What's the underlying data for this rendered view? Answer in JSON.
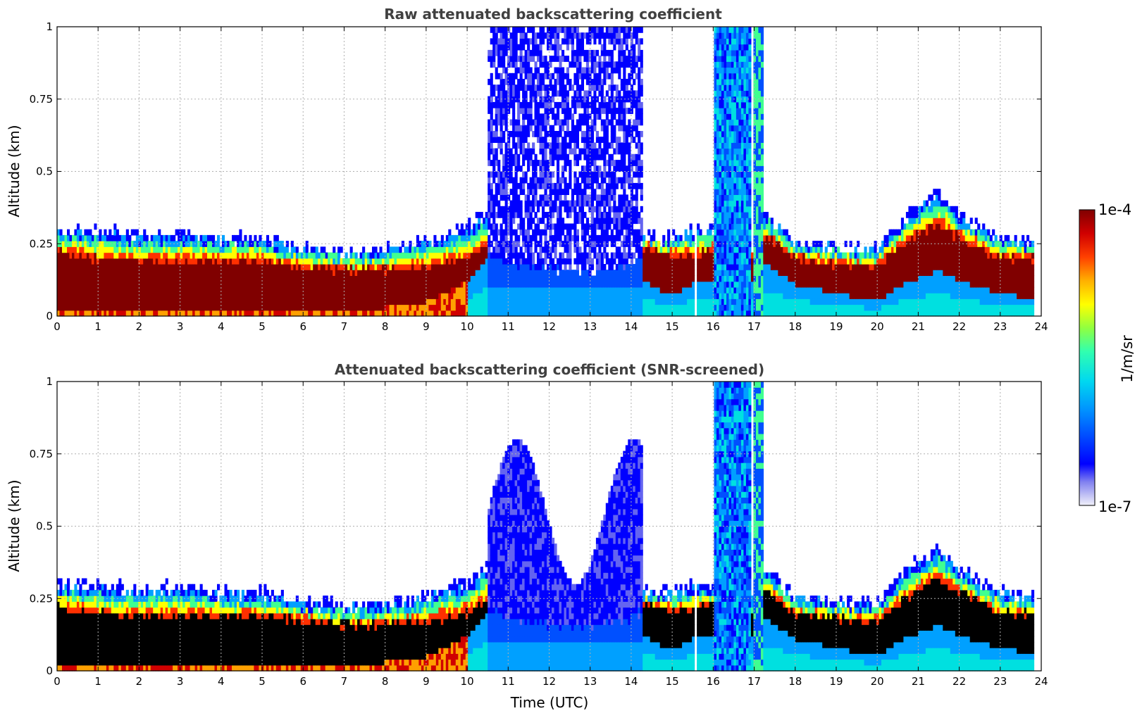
{
  "chart_data": [
    {
      "type": "heatmap",
      "id": "raw",
      "title": "Raw attenuated backscattering coefficient",
      "xlabel": "",
      "ylabel": "Altitude (km)",
      "xlim": [
        0,
        24
      ],
      "ylim": [
        0,
        1
      ],
      "xticks": [
        "0",
        "1",
        "2",
        "3",
        "4",
        "5",
        "6",
        "7",
        "8",
        "9",
        "10",
        "11",
        "12",
        "13",
        "14",
        "15",
        "16",
        "17",
        "18",
        "19",
        "20",
        "21",
        "22",
        "23",
        "24"
      ],
      "yticks": [
        "0",
        "0.25",
        "0.5",
        "0.75",
        "1"
      ],
      "ytick_values": [
        0,
        0.25,
        0.5,
        0.75,
        1
      ],
      "grid": true,
      "screened": false
    },
    {
      "type": "heatmap",
      "id": "snr",
      "title": "Attenuated backscattering coefficient (SNR-screened)",
      "xlabel": "Time (UTC)",
      "ylabel": "Altitude (km)",
      "xlim": [
        0,
        24
      ],
      "ylim": [
        0,
        1
      ],
      "xticks": [
        "0",
        "1",
        "2",
        "3",
        "4",
        "5",
        "6",
        "7",
        "8",
        "9",
        "10",
        "11",
        "12",
        "13",
        "14",
        "15",
        "16",
        "17",
        "18",
        "19",
        "20",
        "21",
        "22",
        "23",
        "24"
      ],
      "yticks": [
        "0",
        "0.25",
        "0.5",
        "0.75",
        "1"
      ],
      "ytick_values": [
        0,
        0.25,
        0.5,
        0.75,
        1
      ],
      "grid": true,
      "screened": true
    }
  ],
  "colorbar": {
    "label": "1/m/sr",
    "max_label": "1e-4",
    "min_label": "1e-7",
    "scale": "log",
    "range": [
      1e-07,
      0.0001
    ]
  },
  "data_extent_hours": 23.8,
  "gap_hours": [
    15.5,
    15.6
  ],
  "layer_profile": {
    "hours": [
      0,
      1,
      2,
      3,
      4,
      5,
      6,
      7,
      8,
      9,
      10,
      10.5,
      11,
      12,
      13,
      14,
      14.3,
      15,
      15.5,
      16,
      16.5,
      17,
      17.3,
      18,
      19,
      20,
      20.5,
      21,
      21.5,
      22,
      23,
      23.8
    ],
    "top_km": [
      0.3,
      0.3,
      0.28,
      0.29,
      0.27,
      0.27,
      0.24,
      0.22,
      0.23,
      0.26,
      0.31,
      0.36,
      0.34,
      0.3,
      0.29,
      0.31,
      0.28,
      0.27,
      0.3,
      0.3,
      0.25,
      0.25,
      0.35,
      0.25,
      0.24,
      0.23,
      0.32,
      0.38,
      0.43,
      0.35,
      0.27,
      0.26
    ],
    "core_top_km": [
      0.22,
      0.2,
      0.19,
      0.19,
      0.19,
      0.19,
      0.17,
      0.16,
      0.16,
      0.17,
      0.2,
      0.24,
      0.2,
      0.18,
      0.17,
      0.2,
      0.23,
      0.21,
      0.21,
      0.23,
      0.2,
      0.2,
      0.28,
      0.2,
      0.18,
      0.17,
      0.23,
      0.28,
      0.32,
      0.27,
      0.2,
      0.2
    ],
    "core_base_km": [
      0.03,
      0.03,
      0.03,
      0.03,
      0.03,
      0.03,
      0.03,
      0.02,
      0.03,
      0.05,
      0.12,
      0.2,
      0.2,
      0.18,
      0.17,
      0.2,
      0.12,
      0.07,
      0.11,
      0.12,
      0.12,
      0.12,
      0.18,
      0.11,
      0.08,
      0.05,
      0.1,
      0.13,
      0.16,
      0.12,
      0.08,
      0.06
    ]
  },
  "colormap": [
    "#ececf8",
    "#c8c8f5",
    "#6464f0",
    "#0000ff",
    "#0050ff",
    "#00a0ff",
    "#00e0e0",
    "#40ff90",
    "#b0ff30",
    "#ffff00",
    "#ffa000",
    "#ff3000",
    "#d00000",
    "#800000"
  ]
}
